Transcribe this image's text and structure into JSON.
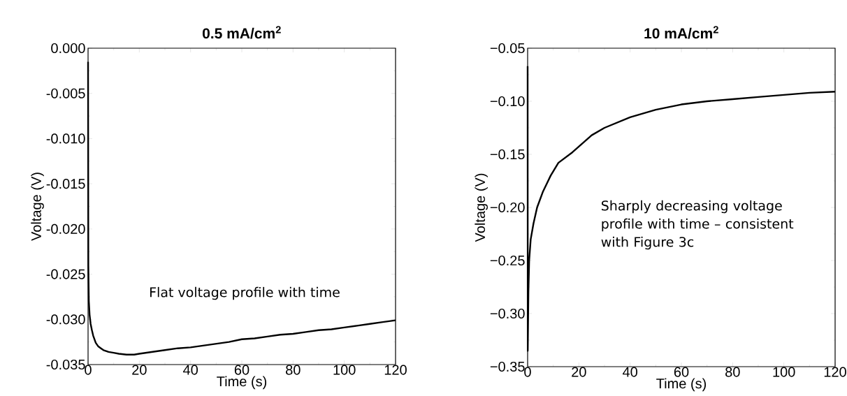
{
  "chart_data": [
    {
      "type": "line",
      "title": "0.5 mA/cm$^{2}$",
      "xlabel": "Time (s)",
      "ylabel": "Voltage (V)",
      "color": "#000000",
      "x": [
        0,
        0.1,
        0.3,
        0.6,
        1,
        1.5,
        2,
        3,
        4,
        5,
        6,
        8,
        10,
        12,
        15,
        18,
        20,
        25,
        30,
        35,
        40,
        45,
        50,
        55,
        60,
        65,
        70,
        75,
        80,
        85,
        90,
        95,
        100,
        105,
        110,
        115,
        120
      ],
      "values": [
        -0.0015,
        -0.024,
        -0.028,
        -0.0295,
        -0.0305,
        -0.0312,
        -0.0318,
        -0.0326,
        -0.033,
        -0.0332,
        -0.0334,
        -0.0336,
        -0.0337,
        -0.0338,
        -0.0339,
        -0.0339,
        -0.0338,
        -0.0336,
        -0.0334,
        -0.0332,
        -0.0331,
        -0.0329,
        -0.0327,
        -0.0325,
        -0.0322,
        -0.0321,
        -0.0319,
        -0.0317,
        -0.0316,
        -0.0314,
        -0.0312,
        -0.0311,
        -0.0309,
        -0.0307,
        -0.0305,
        -0.0303,
        -0.0301
      ],
      "xlim": [
        0,
        120
      ],
      "xticks": [
        0,
        20,
        40,
        60,
        80,
        100,
        120
      ],
      "ylim": [
        -0.035,
        0
      ],
      "yticks": [
        {
          "value": -0.035,
          "label": "-0.035"
        },
        {
          "value": -0.03,
          "label": "-0.030"
        },
        {
          "value": -0.025,
          "label": "-0.025"
        },
        {
          "value": -0.02,
          "label": "-0.020"
        },
        {
          "value": -0.015,
          "label": "-0.015"
        },
        {
          "value": -0.01,
          "label": "-0.010"
        },
        {
          "value": -0.005,
          "label": "-0.005"
        },
        {
          "value": 0,
          "label": "0.000"
        }
      ],
      "annotations": [
        "Flat voltage profile with time"
      ]
    },
    {
      "type": "line",
      "title": "10 mA/cm$^{2}$",
      "xlabel": "Time (s)",
      "ylabel": "Voltage (V)",
      "color": "#000000",
      "x": [
        0,
        0.05,
        0.3,
        0.6,
        1.2,
        2.3,
        3.7,
        6,
        9,
        12,
        17.5,
        25,
        30,
        40,
        50,
        60,
        70,
        80,
        90,
        100,
        110,
        120
      ],
      "values": [
        -0.067,
        -0.335,
        -0.28,
        -0.25,
        -0.23,
        -0.215,
        -0.2,
        -0.185,
        -0.17,
        -0.158,
        -0.148,
        -0.132,
        -0.125,
        -0.115,
        -0.108,
        -0.103,
        -0.1,
        -0.098,
        -0.096,
        -0.094,
        -0.092,
        -0.091
      ],
      "xlim": [
        0,
        120
      ],
      "xticks": [
        0,
        20,
        40,
        60,
        80,
        100,
        120
      ],
      "ylim": [
        -0.35,
        -0.05
      ],
      "yticks": [
        {
          "value": -0.35,
          "label": "−0.35"
        },
        {
          "value": -0.3,
          "label": "−0.30"
        },
        {
          "value": -0.25,
          "label": "−0.25"
        },
        {
          "value": -0.2,
          "label": "−0.20"
        },
        {
          "value": -0.15,
          "label": "−0.15"
        },
        {
          "value": -0.1,
          "label": "−0.10"
        },
        {
          "value": -0.05,
          "label": "−0.05"
        }
      ],
      "annotations": [
        "Sharply decreasing voltage profile with time – consistent with Figure 3c"
      ]
    }
  ]
}
